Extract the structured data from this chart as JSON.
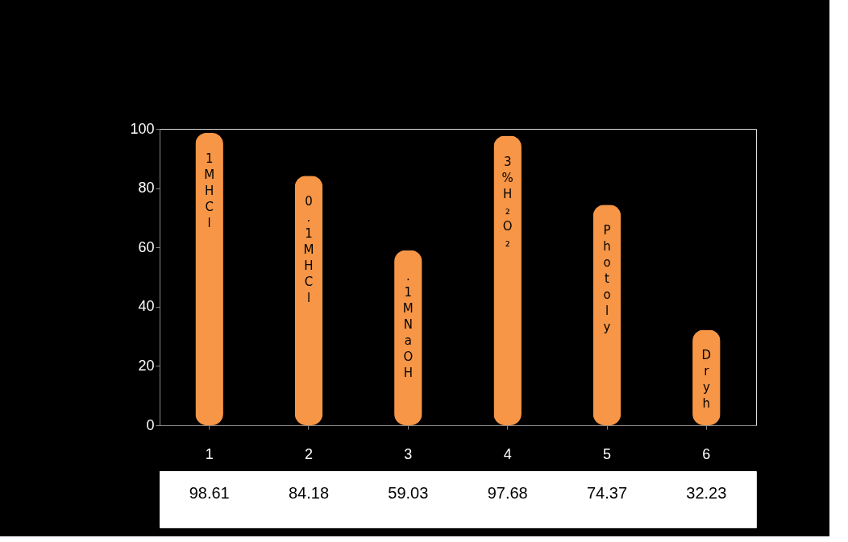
{
  "chart_data": {
    "type": "bar",
    "categories": [
      "1",
      "2",
      "3",
      "4",
      "5",
      "6"
    ],
    "values": [
      98.61,
      84.18,
      59.03,
      97.68,
      74.37,
      32.23
    ],
    "color": "#f79646",
    "ylim": [
      0,
      100
    ],
    "yticks": [
      0,
      20,
      40,
      60,
      80,
      100
    ],
    "grid": false,
    "data_labels": true,
    "annotations": [
      "1M HCl",
      "0.1M HCl",
      ".1M NaOH",
      "3% H₂O₂",
      "Photoly",
      "Dry h"
    ]
  }
}
